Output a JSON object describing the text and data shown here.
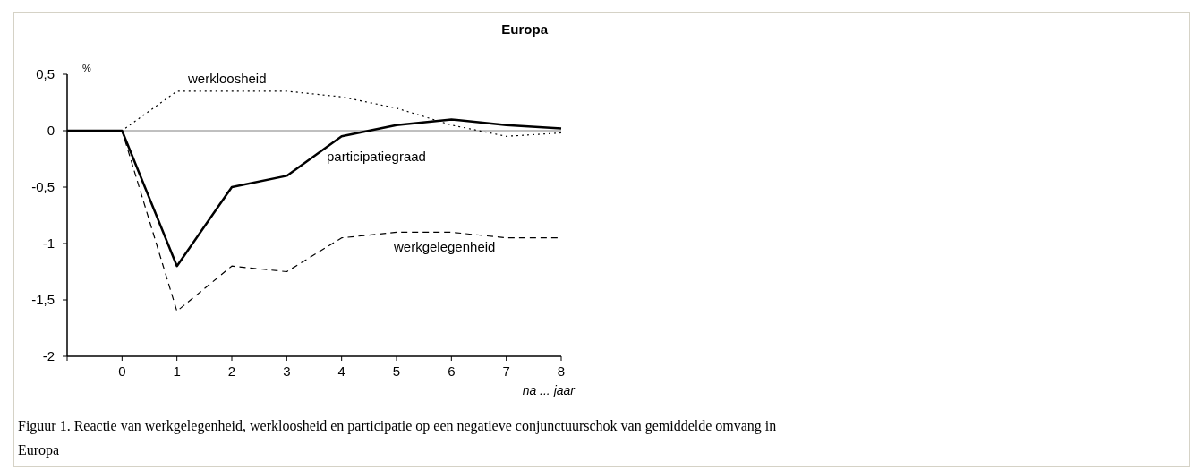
{
  "chart_data": {
    "type": "line",
    "title": "Europa",
    "ylabel": "%",
    "xlabel": "na ... jaar",
    "x": [
      -1,
      0,
      1,
      2,
      3,
      4,
      5,
      6,
      7,
      8
    ],
    "series": [
      {
        "name": "werkloosheid",
        "color": "#000000",
        "line_style": "dotted",
        "values": [
          0,
          0,
          0.35,
          0.35,
          0.35,
          0.3,
          0.2,
          0.05,
          -0.05,
          -0.02
        ]
      },
      {
        "name": "participatiegraad",
        "color": "#000000",
        "line_style": "solid",
        "values": [
          0,
          0,
          -1.2,
          -0.5,
          -0.4,
          -0.05,
          0.05,
          0.1,
          0.05,
          0.02
        ]
      },
      {
        "name": "werkgelegenheid",
        "color": "#000000",
        "line_style": "dashed",
        "values": [
          0,
          0,
          -1.6,
          -1.2,
          -1.25,
          -0.95,
          -0.9,
          -0.9,
          -0.95,
          -0.95
        ]
      }
    ],
    "xlim": [
      -1,
      8
    ],
    "xticks": [
      {
        "value": -1,
        "label": null
      },
      0,
      1,
      2,
      3,
      4,
      5,
      6,
      7,
      8
    ],
    "ylim": [
      -2,
      0.5
    ],
    "yticks": [
      {
        "value": -2,
        "label": "-2"
      },
      {
        "value": -1.5,
        "label": "-1,5"
      },
      {
        "value": -1,
        "label": "-1"
      },
      {
        "value": -0.5,
        "label": "-0,5"
      },
      {
        "value": 0,
        "label": "0"
      },
      {
        "value": 0.5,
        "label": "0,5"
      }
    ],
    "ref_lines": [
      {
        "axis": "y",
        "value": 0,
        "color": "#808080"
      }
    ],
    "grid": false,
    "marker": "none",
    "annotations": [
      "Figuur 1. Reactie van werkgelegenheid, werkloosheid en participatie op een negatieve conjunctuurschok van gemiddelde omvang in Europa"
    ]
  }
}
